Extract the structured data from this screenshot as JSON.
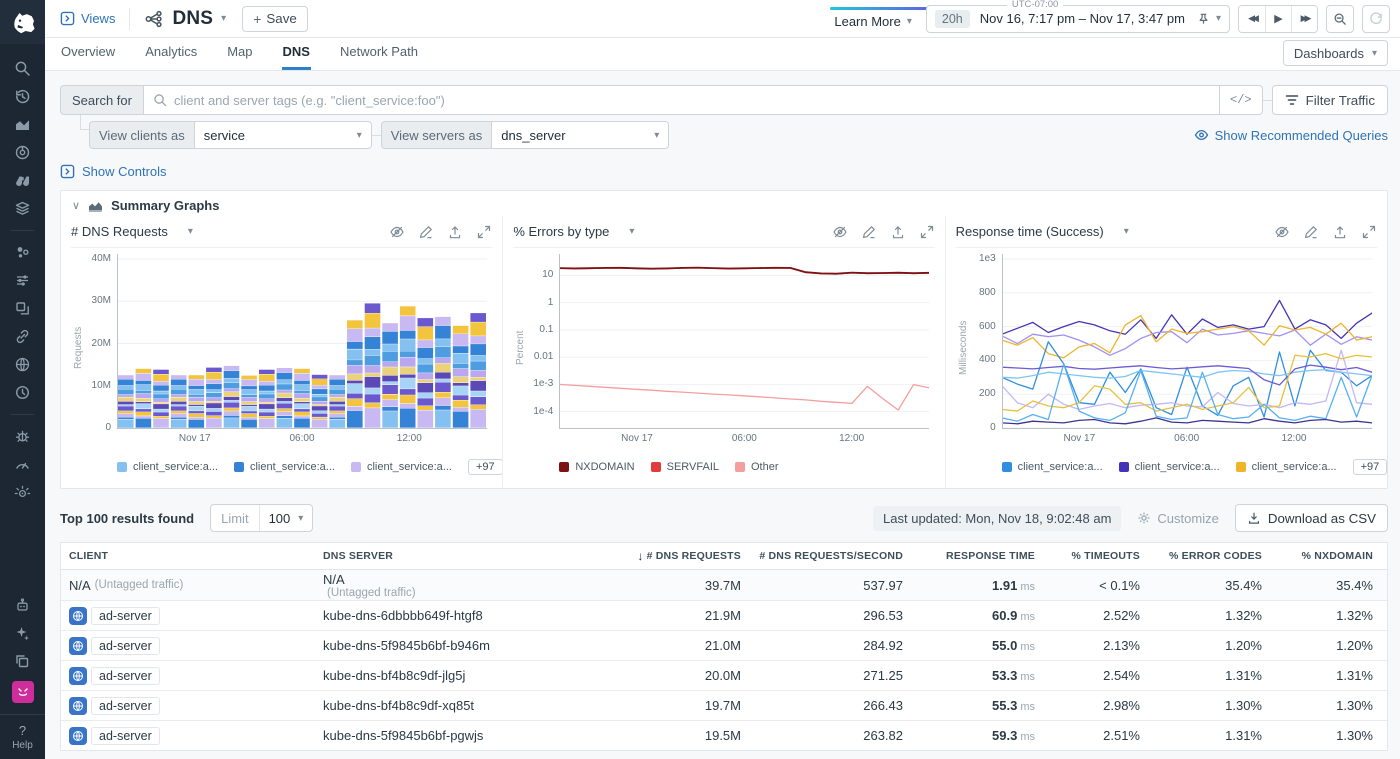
{
  "app": {
    "help_label": "Help"
  },
  "topbar": {
    "views_label": "Views",
    "title": "DNS",
    "save_label": "Save",
    "learn_more_label": "Learn More",
    "time": {
      "timezone": "UTC-07:00",
      "duration": "20h",
      "range": "Nov 16, 7:17 pm – Nov 17, 3:47 pm"
    }
  },
  "tabs": {
    "items": [
      {
        "label": "Overview"
      },
      {
        "label": "Analytics"
      },
      {
        "label": "Map"
      },
      {
        "label": "DNS"
      },
      {
        "label": "Network Path"
      }
    ],
    "active": "DNS",
    "dashboards_label": "Dashboards"
  },
  "search": {
    "label": "Search for",
    "placeholder": "client and server tags (e.g. \"client_service:foo\")",
    "code_toggle": "</>",
    "filter_label": "Filter Traffic",
    "view_clients_label": "View clients as",
    "view_clients_value": "service",
    "view_servers_label": "View servers as",
    "view_servers_value": "dns_server",
    "recommended_label": "Show Recommended Queries"
  },
  "panel": {
    "show_controls_label": "Show Controls",
    "summary_graphs_label": "Summary Graphs"
  },
  "chart_data": [
    {
      "type": "bar",
      "title": "# DNS Requests",
      "ylabel": "Requests",
      "ylim": [
        0,
        40
      ],
      "yticks": [
        {
          "v": 40,
          "label": "40M"
        },
        {
          "v": 30,
          "label": "30M"
        },
        {
          "v": 20,
          "label": "20M"
        },
        {
          "v": 10,
          "label": "10M"
        },
        {
          "v": 0,
          "label": "0"
        }
      ],
      "xticks": [
        {
          "label": "Nov 17",
          "pos": 0.21
        },
        {
          "label": "06:00",
          "pos": 0.5
        },
        {
          "label": "12:00",
          "pos": 0.79
        }
      ],
      "bar_totals_millions": [
        12.5,
        14.0,
        13.8,
        12.5,
        12.5,
        14.3,
        14.7,
        12.4,
        13.8,
        14.2,
        14.0,
        12.6,
        12.5,
        25.5,
        29.5,
        24.8,
        28.8,
        26.0,
        26.3,
        24.2,
        27.2
      ],
      "stack_mix": [
        0.16,
        0.04,
        0.07,
        0.05,
        0.09,
        0.03,
        0.06,
        0.08,
        0.05,
        0.1,
        0.07,
        0.12,
        0.08
      ],
      "colors": [
        "#85c1f0",
        "#3583d6",
        "#c9b9f2",
        "#f3c43e",
        "#6a58cf",
        "#a7d4f5",
        "#5b49b8",
        "#ead27a",
        "#b9a8ef",
        "#4d9de0"
      ],
      "legend": [
        {
          "label": "client_service:a...",
          "color": "#85c1f0"
        },
        {
          "label": "client_service:a...",
          "color": "#3583d6"
        },
        {
          "label": "client_service:a...",
          "color": "#c9b9f2"
        }
      ],
      "legend_more": "+97"
    },
    {
      "type": "line",
      "title": "% Errors by type",
      "ylabel": "Percent",
      "yscale": "log",
      "ylim_log": [
        -4.6,
        1.6
      ],
      "yticks": [
        {
          "v": 10,
          "label": "10"
        },
        {
          "v": 1,
          "label": "1"
        },
        {
          "v": 0.1,
          "label": "0.1"
        },
        {
          "v": 0.01,
          "label": "0.01"
        },
        {
          "v": 0.001,
          "label": "1e-3"
        },
        {
          "v": 0.0001,
          "label": "1e-4"
        }
      ],
      "xticks": [
        {
          "label": "Nov 17",
          "pos": 0.21
        },
        {
          "label": "06:00",
          "pos": 0.5
        },
        {
          "label": "12:00",
          "pos": 0.79
        }
      ],
      "series": [
        {
          "name": "SERVFAIL",
          "color": "#e23b3b",
          "values": [
            18.0,
            17.6,
            17.9,
            18.4,
            18.6,
            17.8,
            17.2,
            17.6,
            18.4,
            18.8,
            18.0,
            17.4,
            17.8,
            18.2,
            18.6,
            18.4,
            12.7,
            11.5,
            11.2,
            12.3,
            11.7,
            11.9,
            12.2,
            11.7,
            12.1
          ]
        },
        {
          "name": "NXDOMAIN",
          "color": "#7d1215",
          "values": [
            18.5,
            18.0,
            18.3,
            18.8,
            19.0,
            18.2,
            17.6,
            18.0,
            18.8,
            19.2,
            18.4,
            17.8,
            18.2,
            18.6,
            19.0,
            18.8,
            13.0,
            11.8,
            11.5,
            12.6,
            12.0,
            12.2,
            12.5,
            12.0,
            12.4
          ]
        },
        {
          "name": "Other",
          "color": "#f59e9e",
          "values": [
            0.001,
            0.00092,
            0.00085,
            0.00078,
            0.00072,
            0.00066,
            0.00061,
            0.00056,
            0.00052,
            0.00048,
            0.00044,
            0.00041,
            0.00038,
            0.00035,
            0.00032,
            0.00029,
            0.00027,
            0.00024,
            0.00022,
            0.0002,
            0.00085,
            0.0003,
            0.000115,
            0.00098,
            0.00075
          ]
        }
      ],
      "legend": [
        {
          "label": "NXDOMAIN",
          "color": "#7d1215"
        },
        {
          "label": "SERVFAIL",
          "color": "#e23b3b"
        },
        {
          "label": "Other",
          "color": "#f59e9e"
        }
      ]
    },
    {
      "type": "line",
      "title": "Response time (Success)",
      "ylabel": "Milliseconds",
      "ylim": [
        0,
        1000
      ],
      "yticks": [
        {
          "v": 1000,
          "label": "1e3"
        },
        {
          "v": 800,
          "label": "800"
        },
        {
          "v": 600,
          "label": "600"
        },
        {
          "v": 400,
          "label": "400"
        },
        {
          "v": 200,
          "label": "200"
        },
        {
          "v": 0,
          "label": "0"
        }
      ],
      "xticks": [
        {
          "label": "Nov 17",
          "pos": 0.21
        },
        {
          "label": "06:00",
          "pos": 0.5
        },
        {
          "label": "12:00",
          "pos": 0.79
        }
      ],
      "series": [
        {
          "name": "client_service:a...",
          "color": "#4634b8",
          "values": [
            555,
            590,
            625,
            565,
            600,
            630,
            610,
            575,
            555,
            640,
            530,
            670,
            555,
            645,
            595,
            610,
            585,
            600,
            755,
            585,
            640,
            610,
            530,
            620,
            680
          ]
        },
        {
          "name": "client_service:a...",
          "color": "#a291f5",
          "values": [
            545,
            500,
            555,
            540,
            550,
            520,
            480,
            430,
            470,
            530,
            565,
            570,
            505,
            585,
            550,
            560,
            575,
            560,
            545,
            580,
            490,
            555,
            495,
            540,
            520
          ]
        },
        {
          "name": "client_service:a...",
          "color": "#f0b429",
          "values": [
            520,
            490,
            535,
            440,
            415,
            480,
            500,
            445,
            610,
            665,
            510,
            585,
            560,
            570,
            585,
            600,
            575,
            490,
            605,
            580,
            595,
            555,
            620,
            520,
            540
          ]
        },
        {
          "name": "client_service:a...",
          "color": "#2f8fe0",
          "values": [
            300,
            260,
            230,
            510,
            380,
            150,
            140,
            330,
            210,
            350,
            120,
            80,
            360,
            130,
            75,
            250,
            300,
            65,
            450,
            130,
            460,
            340,
            330,
            250,
            310
          ]
        },
        {
          "name": "client_service:a...",
          "color": "#7fc3f7",
          "values": [
            300,
            295,
            310,
            330,
            320,
            310,
            300,
            295,
            305,
            340,
            330,
            320,
            310,
            300,
            330,
            340,
            335,
            320,
            310,
            330,
            340,
            345,
            330,
            320,
            310
          ]
        },
        {
          "name": "client_service:a...",
          "color": "#6a5bd6",
          "values": [
            360,
            355,
            350,
            358,
            365,
            352,
            348,
            355,
            362,
            368,
            358,
            350,
            355,
            362,
            368,
            360,
            352,
            285,
            255,
            350,
            372,
            360,
            345,
            358,
            330
          ]
        },
        {
          "name": "client_service:a...",
          "color": "#c4b7f7",
          "values": [
            250,
            150,
            120,
            200,
            140,
            110,
            130,
            145,
            120,
            135,
            140,
            150,
            130,
            125,
            210,
            145,
            130,
            140,
            120,
            150,
            140,
            160,
            460,
            150,
            140
          ]
        },
        {
          "name": "client_service:a...",
          "color": "#e8c13d",
          "values": [
            110,
            100,
            160,
            130,
            120,
            150,
            250,
            230,
            140,
            150,
            100,
            120,
            140,
            110,
            130,
            150,
            240,
            120,
            130,
            430,
            420,
            440,
            410,
            430,
            420
          ]
        },
        {
          "name": "client_service:a...",
          "color": "#57b0f2",
          "values": [
            60,
            40,
            80,
            50,
            380,
            100,
            60,
            45,
            90,
            340,
            70,
            50,
            60,
            330,
            80,
            55,
            65,
            140,
            60,
            45,
            70,
            55,
            300,
            65,
            310
          ]
        },
        {
          "name": "client_service:a...",
          "color": "#3d348f",
          "values": [
            30,
            25,
            40,
            35,
            30,
            45,
            50,
            30,
            25,
            40,
            60,
            35,
            30,
            45,
            40,
            35,
            30,
            55,
            40,
            30,
            45,
            50,
            35,
            40,
            30
          ]
        }
      ],
      "legend": [
        {
          "label": "client_service:a...",
          "color": "#2f8fe0"
        },
        {
          "label": "client_service:a...",
          "color": "#4634b8"
        },
        {
          "label": "client_service:a...",
          "color": "#f0b429"
        }
      ],
      "legend_more": "+97"
    }
  ],
  "table": {
    "summary": "Top 100 results found",
    "limit_label": "Limit",
    "limit_value": "100",
    "last_updated": "Last updated: Mon, Nov 18, 9:02:48 am",
    "customize_label": "Customize",
    "download_label": "Download as CSV",
    "columns": [
      {
        "label": "CLIENT"
      },
      {
        "label": "DNS SERVER"
      },
      {
        "label": "# DNS REQUESTS",
        "sorted": true
      },
      {
        "label": "# DNS REQUESTS/SECOND"
      },
      {
        "label": "RESPONSE TIME"
      },
      {
        "label": "% TIMEOUTS"
      },
      {
        "label": "% ERROR CODES"
      },
      {
        "label": "% NXDOMAIN"
      }
    ],
    "rows": [
      {
        "client": {
          "label": "N/A",
          "sub": "(Untagged traffic)"
        },
        "server": {
          "label": "N/A",
          "sub": "(Untagged traffic)"
        },
        "requests": "39.7M",
        "rps": "537.97",
        "response": "1.91",
        "response_unit": "ms",
        "timeouts": "< 0.1%",
        "error_codes": "35.4%",
        "nxdomain": "35.4%"
      },
      {
        "client": {
          "chip": "ad-server"
        },
        "server": {
          "label": "kube-dns-6dbbbb649f-htgf8"
        },
        "requests": "21.9M",
        "rps": "296.53",
        "response": "60.9",
        "response_unit": "ms",
        "timeouts": "2.52%",
        "error_codes": "1.32%",
        "nxdomain": "1.32%"
      },
      {
        "client": {
          "chip": "ad-server"
        },
        "server": {
          "label": "kube-dns-5f9845b6bf-b946m"
        },
        "requests": "21.0M",
        "rps": "284.92",
        "response": "55.0",
        "response_unit": "ms",
        "timeouts": "2.13%",
        "error_codes": "1.20%",
        "nxdomain": "1.20%"
      },
      {
        "client": {
          "chip": "ad-server"
        },
        "server": {
          "label": "kube-dns-bf4b8c9df-jlg5j"
        },
        "requests": "20.0M",
        "rps": "271.25",
        "response": "53.3",
        "response_unit": "ms",
        "timeouts": "2.54%",
        "error_codes": "1.31%",
        "nxdomain": "1.31%"
      },
      {
        "client": {
          "chip": "ad-server"
        },
        "server": {
          "label": "kube-dns-bf4b8c9df-xq85t"
        },
        "requests": "19.7M",
        "rps": "266.43",
        "response": "55.3",
        "response_unit": "ms",
        "timeouts": "2.98%",
        "error_codes": "1.30%",
        "nxdomain": "1.30%"
      },
      {
        "client": {
          "chip": "ad-server"
        },
        "server": {
          "label": "kube-dns-5f9845b6bf-pgwjs"
        },
        "requests": "19.5M",
        "rps": "263.82",
        "response": "59.3",
        "response_unit": "ms",
        "timeouts": "2.51%",
        "error_codes": "1.31%",
        "nxdomain": "1.30%"
      }
    ]
  }
}
